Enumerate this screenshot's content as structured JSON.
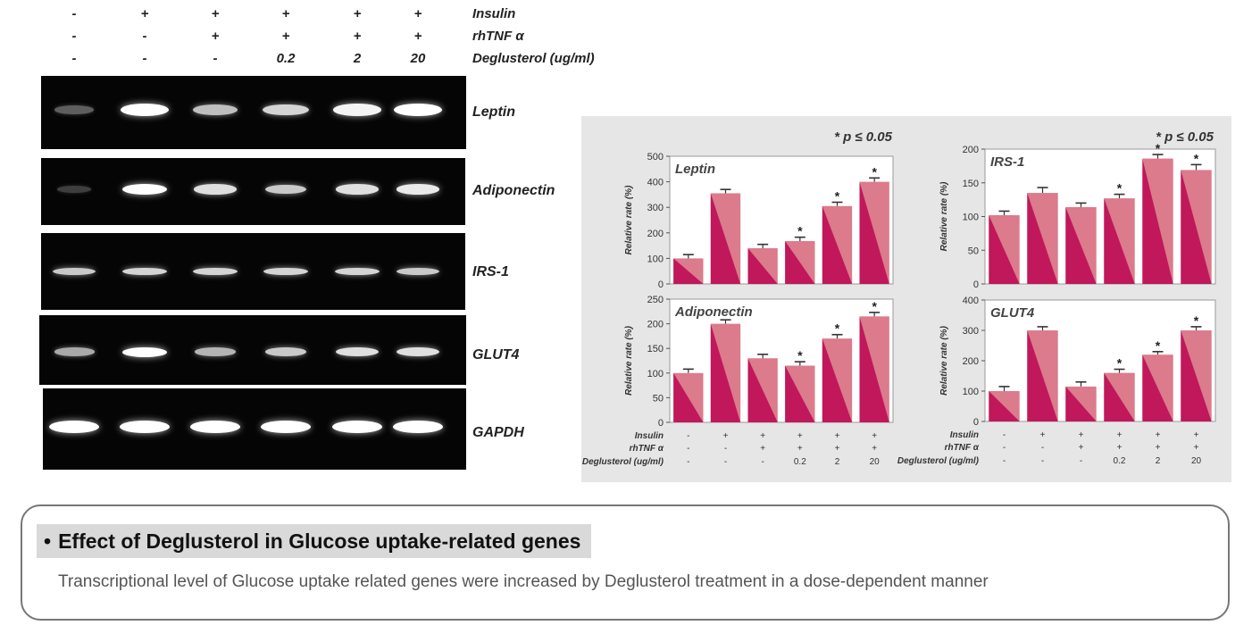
{
  "conditions": {
    "rows": [
      {
        "label": "Insulin",
        "values": [
          "-",
          "+",
          "+",
          "+",
          "+",
          "+"
        ]
      },
      {
        "label": "rhTNF α",
        "values": [
          "-",
          "-",
          "+",
          "+",
          "+",
          "+"
        ]
      },
      {
        "label": "Deglusterol (ug/ml)",
        "values": [
          "-",
          "-",
          "-",
          "0.2",
          "2",
          "20"
        ]
      }
    ]
  },
  "gels": [
    {
      "label": "Leptin",
      "intensities": [
        0.25,
        1.0,
        0.7,
        0.8,
        0.95,
        1.0
      ]
    },
    {
      "label": "Adiponectin",
      "intensities": [
        0.1,
        1.0,
        0.85,
        0.75,
        0.85,
        0.9
      ]
    },
    {
      "label": "IRS-1",
      "intensities": [
        0.75,
        0.8,
        0.8,
        0.8,
        0.8,
        0.75
      ]
    },
    {
      "label": "GLUT4",
      "intensities": [
        0.6,
        1.0,
        0.65,
        0.75,
        0.85,
        0.85
      ]
    },
    {
      "label": "GAPDH",
      "intensities": [
        1.0,
        1.0,
        1.0,
        1.0,
        1.0,
        1.0
      ]
    }
  ],
  "chart_data": [
    {
      "type": "bar",
      "title": "Leptin",
      "ylabel": "Relative rate (%)",
      "significance": "* p ≤ 0.05",
      "ylim": [
        0,
        500
      ],
      "yticks": [
        0,
        100,
        200,
        300,
        400,
        500
      ],
      "values": [
        100,
        355,
        140,
        168,
        305,
        400
      ],
      "errors": [
        15,
        15,
        15,
        15,
        15,
        15
      ],
      "significant": [
        false,
        false,
        false,
        true,
        true,
        true
      ]
    },
    {
      "type": "bar",
      "title": "IRS-1",
      "ylabel": "Relative rate (%)",
      "significance": "* p ≤ 0.05",
      "ylim": [
        0,
        200
      ],
      "yticks": [
        0,
        50,
        100,
        150,
        200
      ],
      "values": [
        102,
        135,
        114,
        127,
        186,
        169
      ],
      "errors": [
        6,
        8,
        6,
        6,
        6,
        8
      ],
      "significant": [
        false,
        false,
        false,
        true,
        true,
        true
      ]
    },
    {
      "type": "bar",
      "title": "Adiponectin",
      "ylabel": "Relative rate (%)",
      "significance": "",
      "ylim": [
        0,
        250
      ],
      "yticks": [
        0,
        50,
        100,
        150,
        200,
        250
      ],
      "values": [
        100,
        200,
        130,
        115,
        170,
        215
      ],
      "errors": [
        8,
        8,
        8,
        8,
        8,
        8
      ],
      "significant": [
        false,
        false,
        false,
        true,
        true,
        true
      ]
    },
    {
      "type": "bar",
      "title": "GLUT4",
      "ylabel": "Relative rate (%)",
      "significance": "",
      "ylim": [
        0,
        400
      ],
      "yticks": [
        0,
        100,
        200,
        300,
        400
      ],
      "values": [
        100,
        300,
        115,
        160,
        220,
        300
      ],
      "errors": [
        15,
        12,
        15,
        12,
        10,
        12
      ],
      "significant": [
        false,
        false,
        false,
        true,
        true,
        true
      ]
    }
  ],
  "chart_conditions": {
    "labels": [
      "Insulin",
      "rhTNF α",
      "Deglusterol (ug/ml)"
    ],
    "values": [
      [
        "-",
        "+",
        "+",
        "+",
        "+",
        "+"
      ],
      [
        "-",
        "-",
        "+",
        "+",
        "+",
        "+"
      ],
      [
        "-",
        "-",
        "-",
        "0.2",
        "2",
        "20"
      ]
    ]
  },
  "colors": {
    "bar_light": "#db7b8c",
    "bar_dark": "#c0185a",
    "panel_bg": "#e6e6e6"
  },
  "summary": {
    "bullet": "•",
    "title": "Effect of Deglusterol in Glucose uptake-related genes",
    "description": "Transcriptional level of Glucose uptake related genes were increased by Deglusterol treatment in a dose-dependent manner"
  }
}
